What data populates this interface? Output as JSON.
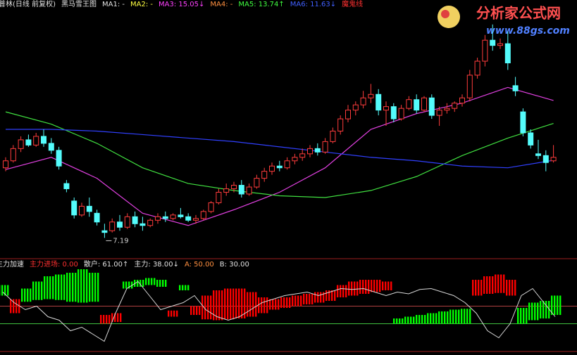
{
  "chart_data": [
    {
      "type": "candlestick",
      "title": "津普林(日线 前复权)",
      "subtitle": "黑马雪王图",
      "legend": [
        {
          "label": "MA1: -",
          "color": "#e0e0e0"
        },
        {
          "label": "MA2: -",
          "color": "#ffff40"
        },
        {
          "label": "MA3: 15.05↓",
          "color": "#ff40ff"
        },
        {
          "label": "MA4: -",
          "color": "#ff9040"
        },
        {
          "label": "MA5: 13.74↑",
          "color": "#40ff40"
        },
        {
          "label": "MA6: 11.63↓",
          "color": "#4060ff"
        },
        {
          "label": "魔鬼线",
          "color": "#ff3030"
        }
      ],
      "open": [
        11.2,
        11.6,
        12.3,
        12.8,
        12.5,
        13.0,
        12.6,
        12.2,
        10.3,
        9.3,
        8.5,
        9.0,
        8.6,
        7.6,
        7.6,
        8.1,
        7.8,
        8.4,
        8.0,
        7.9,
        8.2,
        8.4,
        8.3,
        8.5,
        8.4,
        8.2,
        8.3,
        8.7,
        9.2,
        9.8,
        10.0,
        10.2,
        9.7,
        10.1,
        10.6,
        11.0,
        11.3,
        11.2,
        11.6,
        11.8,
        12.0,
        12.3,
        12.1,
        12.7,
        13.3,
        14.0,
        14.5,
        14.8,
        15.2,
        15.4,
        14.5,
        14.7,
        14.0,
        14.6,
        15.1,
        14.5,
        15.2,
        14.2,
        14.5,
        14.6,
        14.9,
        15.2,
        16.5,
        17.3,
        18.5,
        18.2,
        18.3,
        15.9,
        14.4,
        13.2,
        12.0,
        11.9,
        11.6
      ],
      "high": [
        11.8,
        12.5,
        13.0,
        13.1,
        13.2,
        13.4,
        12.9,
        12.4,
        10.5,
        9.5,
        9.2,
        9.5,
        8.8,
        8.0,
        8.3,
        8.5,
        8.6,
        8.7,
        8.4,
        8.3,
        8.6,
        8.7,
        8.6,
        8.9,
        8.6,
        8.5,
        8.8,
        9.3,
        10.0,
        10.3,
        10.4,
        10.5,
        10.3,
        10.8,
        11.2,
        11.5,
        11.6,
        11.8,
        12.0,
        12.3,
        12.5,
        12.6,
        12.9,
        13.5,
        14.2,
        14.8,
        15.0,
        15.6,
        16.0,
        15.7,
        15.0,
        14.9,
        14.8,
        15.3,
        15.4,
        15.3,
        15.4,
        14.7,
        14.9,
        15.0,
        15.4,
        16.8,
        17.5,
        18.8,
        19.4,
        18.6,
        19.0,
        16.4,
        14.6,
        13.4,
        12.8,
        12.2,
        12.5
      ],
      "low": [
        11.0,
        11.5,
        12.1,
        12.4,
        12.4,
        12.4,
        12.0,
        11.1,
        9.8,
        8.3,
        8.4,
        8.4,
        7.9,
        7.19,
        7.5,
        7.6,
        7.7,
        7.8,
        7.6,
        7.8,
        8.0,
        8.1,
        8.2,
        8.3,
        8.1,
        8.0,
        8.2,
        8.6,
        9.1,
        9.6,
        9.8,
        9.5,
        9.6,
        10.0,
        10.4,
        10.8,
        11.0,
        11.1,
        11.4,
        11.6,
        11.8,
        11.9,
        12.0,
        12.6,
        13.1,
        13.8,
        14.2,
        14.6,
        14.9,
        14.2,
        13.6,
        13.8,
        13.9,
        14.5,
        14.3,
        14.4,
        14.0,
        13.6,
        14.3,
        14.4,
        14.7,
        15.0,
        16.3,
        17.0,
        17.9,
        18.0,
        16.8,
        15.3,
        13.0,
        12.3,
        11.7,
        11.0,
        11.5
      ],
      "close": [
        11.6,
        12.3,
        12.8,
        12.5,
        13.0,
        12.6,
        12.2,
        11.3,
        10.0,
        8.5,
        9.0,
        8.7,
        8.1,
        7.5,
        8.1,
        7.8,
        8.4,
        8.0,
        7.9,
        8.2,
        8.4,
        8.3,
        8.5,
        8.4,
        8.2,
        8.3,
        8.7,
        9.2,
        9.8,
        10.0,
        10.2,
        9.7,
        10.1,
        10.6,
        11.0,
        11.3,
        11.2,
        11.6,
        11.8,
        12.0,
        12.3,
        12.1,
        12.7,
        13.3,
        14.0,
        14.5,
        14.8,
        15.2,
        15.4,
        14.5,
        14.7,
        14.0,
        14.6,
        15.1,
        14.5,
        15.2,
        14.2,
        14.5,
        14.6,
        14.9,
        15.2,
        16.5,
        17.3,
        18.5,
        18.2,
        18.3,
        17.2,
        15.6,
        13.2,
        12.5,
        11.9,
        11.5,
        11.8
      ],
      "up_color": "#ff3c3c",
      "down_color": "#54fcfc",
      "lines": [
        {
          "color": "#e040e0",
          "x": [
            0,
            6,
            12,
            18,
            24,
            30,
            36,
            42,
            48,
            54,
            60,
            66,
            72
          ],
          "values": [
            11.1,
            11.8,
            10.6,
            8.6,
            7.9,
            8.8,
            9.8,
            11.2,
            13.4,
            14.3,
            14.9,
            15.8,
            15.05
          ]
        },
        {
          "color": "#40e040",
          "x": [
            0,
            6,
            12,
            18,
            24,
            30,
            36,
            42,
            48,
            54,
            60,
            66,
            72
          ],
          "values": [
            14.4,
            13.7,
            12.6,
            11.2,
            10.3,
            9.9,
            9.6,
            9.5,
            9.9,
            10.7,
            11.9,
            12.9,
            13.74
          ]
        },
        {
          "color": "#3040ff",
          "x": [
            0,
            6,
            12,
            18,
            24,
            30,
            36,
            42,
            48,
            54,
            60,
            66,
            72
          ],
          "values": [
            13.4,
            13.4,
            13.3,
            13.1,
            12.9,
            12.7,
            12.4,
            12.1,
            11.8,
            11.6,
            11.3,
            11.2,
            11.63
          ]
        }
      ],
      "ylim": [
        6,
        20.8
      ]
    },
    {
      "type": "band-bar",
      "title": "主力加速",
      "legend": [
        {
          "label": "主力进场: 0.00",
          "color": "#ff3030"
        },
        {
          "label": "散户: 61.00↑",
          "color": "#e0e0e0"
        },
        {
          "label": "主力: 38.00↓",
          "color": "#e0e0e0"
        },
        {
          "label": "A: 50.00",
          "color": "#ff9040"
        },
        {
          "label": "B: 30.00",
          "color": "#e0e0e0"
        }
      ],
      "bar_bottom": [
        62,
        42,
        55,
        57,
        58,
        57,
        55,
        54,
        55,
        30,
        32,
        70,
        72,
        74,
        72,
        38,
        68,
        40,
        35,
        34,
        35,
        36,
        38,
        42,
        46,
        48,
        50,
        52,
        54,
        56,
        60,
        62,
        64,
        66,
        68,
        30,
        30,
        30,
        30,
        30,
        30,
        30,
        62,
        64,
        65,
        62,
        30,
        34,
        36,
        40
      ],
      "bar_top": [
        74,
        58,
        70,
        78,
        84,
        86,
        88,
        92,
        88,
        40,
        42,
        78,
        80,
        82,
        80,
        45,
        74,
        50,
        62,
        68,
        70,
        70,
        66,
        60,
        58,
        60,
        62,
        64,
        66,
        68,
        74,
        78,
        80,
        80,
        78,
        36,
        38,
        40,
        42,
        44,
        46,
        47,
        80,
        84,
        86,
        80,
        48,
        54,
        56,
        62
      ],
      "bar_colors": [
        "lime",
        "red",
        "lime",
        "lime",
        "lime",
        "lime",
        "lime",
        "lime",
        "lime",
        "red",
        "red",
        "lime",
        "lime",
        "lime",
        "lime",
        "red",
        "lime",
        "red",
        "red",
        "red",
        "red",
        "red",
        "red",
        "red",
        "red",
        "red",
        "red",
        "red",
        "red",
        "red",
        "red",
        "red",
        "red",
        "red",
        "red",
        "lime",
        "lime",
        "lime",
        "lime",
        "lime",
        "lime",
        "lime",
        "red",
        "red",
        "red",
        "red",
        "lime",
        "lime",
        "lime",
        "lime"
      ],
      "line": {
        "color": "#d8d8d8",
        "values": [
          66,
          54,
          46,
          50,
          38,
          34,
          22,
          26,
          18,
          10,
          42,
          70,
          78,
          62,
          46,
          50,
          54,
          62,
          46,
          38,
          34,
          38,
          46,
          54,
          58,
          62,
          64,
          66,
          62,
          66,
          70,
          69,
          70,
          66,
          62,
          66,
          64,
          69,
          70,
          66,
          62,
          54,
          42,
          22,
          14,
          30,
          62,
          70,
          54,
          38
        ]
      },
      "reference_lines": [
        {
          "value": 50,
          "color": "#b04040"
        },
        {
          "value": 30,
          "color": "#40c040"
        }
      ],
      "ylim": [
        0,
        100
      ]
    }
  ],
  "watermark": {
    "title": "分析家公式网",
    "url": "www.88gs.com"
  }
}
